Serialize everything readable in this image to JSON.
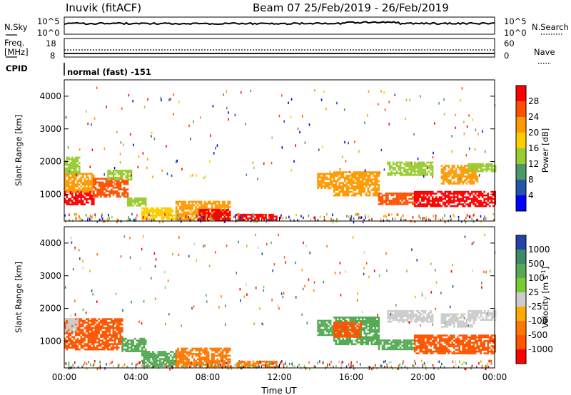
{
  "header": {
    "title_left": "Inuvik (fitACF)",
    "title_right": "Beam 07  25/Feb/2019 - 26/Feb/2019",
    "mode_line": "normal (fast) -151"
  },
  "nsky_panel": {
    "left_label": "N.Sky",
    "right_label": "N.Search",
    "ticks_left": [
      "10^5",
      "10^0"
    ],
    "ticks_right": [
      "10^5",
      "10^0"
    ]
  },
  "freq_panel": {
    "left_label_1": "Freq.",
    "left_label_2": "[MHz]",
    "right_label": "Nave",
    "ticks_left": [
      "18",
      "8"
    ],
    "ticks_right": [
      "60",
      "0"
    ]
  },
  "cpid_label": "CPID",
  "chart_data": [
    {
      "type": "heatmap",
      "name": "power",
      "ylabel": "Slant Range [km]",
      "xlabel": "",
      "x_ticks": [
        "00:00",
        "04:00",
        "08:00",
        "12:00",
        "16:00",
        "20:00",
        "00:00"
      ],
      "y_ticks": [
        "1000",
        "2000",
        "3000",
        "4000"
      ],
      "xlim": [
        0,
        24
      ],
      "ylim": [
        180,
        4500
      ],
      "colorbar": {
        "label": "Power [dB]",
        "ticks": [
          "28",
          "24",
          "20",
          "16",
          "12",
          "8",
          "4"
        ],
        "colors": [
          "#ff0000",
          "#ff5000",
          "#ff9900",
          "#ffcc00",
          "#99cc33",
          "#4d9966",
          "#2255aa",
          "#0000ff"
        ]
      },
      "regions": [
        {
          "t0": 0.0,
          "t1": 1.6,
          "r0": 700,
          "r1": 1100,
          "level": 28
        },
        {
          "t0": 0.0,
          "t1": 1.6,
          "r0": 1100,
          "r1": 1650,
          "level": 20
        },
        {
          "t0": 0.0,
          "t1": 0.8,
          "r0": 1650,
          "r1": 2150,
          "level": 12
        },
        {
          "t0": 1.6,
          "t1": 3.5,
          "r0": 900,
          "r1": 1500,
          "level": 24
        },
        {
          "t0": 2.4,
          "t1": 3.7,
          "r0": 1450,
          "r1": 1750,
          "level": 12
        },
        {
          "t0": 3.5,
          "t1": 4.5,
          "r0": 650,
          "r1": 900,
          "level": 12
        },
        {
          "t0": 4.3,
          "t1": 6.2,
          "r0": 250,
          "r1": 600,
          "level": 16
        },
        {
          "t0": 6.2,
          "t1": 9.2,
          "r0": 250,
          "r1": 800,
          "level": 20
        },
        {
          "t0": 7.5,
          "t1": 9.2,
          "r0": 200,
          "r1": 550,
          "level": 28
        },
        {
          "t0": 9.6,
          "t1": 11.8,
          "r0": 200,
          "r1": 400,
          "level": 28
        },
        {
          "t0": 14.1,
          "t1": 14.9,
          "r0": 1200,
          "r1": 1650,
          "level": 20
        },
        {
          "t0": 15.0,
          "t1": 17.5,
          "r0": 950,
          "r1": 1700,
          "level": 20
        },
        {
          "t0": 17.5,
          "t1": 19.5,
          "r0": 700,
          "r1": 1050,
          "level": 24
        },
        {
          "t0": 19.5,
          "t1": 24.0,
          "r0": 650,
          "r1": 1100,
          "level": 28
        },
        {
          "t0": 21.0,
          "t1": 23.0,
          "r0": 1300,
          "r1": 1900,
          "level": 20
        },
        {
          "t0": 18.0,
          "t1": 20.5,
          "r0": 1600,
          "r1": 2000,
          "level": 12
        },
        {
          "t0": 22.5,
          "t1": 24.0,
          "r0": 1700,
          "r1": 1950,
          "level": 12
        }
      ]
    },
    {
      "type": "heatmap",
      "name": "velocity",
      "ylabel": "Slant Range [km]",
      "xlabel": "Time UT",
      "x_ticks": [
        "00:00",
        "04:00",
        "08:00",
        "12:00",
        "16:00",
        "20:00",
        "00:00"
      ],
      "y_ticks": [
        "1000",
        "2000",
        "3000",
        "4000"
      ],
      "xlim": [
        0,
        24
      ],
      "ylim": [
        180,
        4500
      ],
      "colorbar": {
        "label": "Velocity [m s",
        "label_exponent": "-1",
        "label_close": "]",
        "ticks": [
          "1000",
          "500",
          "100",
          "25",
          "-25",
          "-100",
          "-500",
          "-1000"
        ],
        "colors": [
          "#2244aa",
          "#3d8a66",
          "#55aa55",
          "#77cc33",
          "#cccccc",
          "#ffaa00",
          "#ff7700",
          "#ff5500",
          "#ff0000"
        ]
      },
      "regions": [
        {
          "t0": 0.0,
          "t1": 3.2,
          "r0": 750,
          "r1": 1700,
          "level": -500
        },
        {
          "t0": 0.0,
          "t1": 0.7,
          "r0": 1300,
          "r1": 1700,
          "level": 0
        },
        {
          "t0": 3.2,
          "t1": 4.5,
          "r0": 700,
          "r1": 1100,
          "level": 100
        },
        {
          "t0": 4.3,
          "t1": 6.2,
          "r0": 250,
          "r1": 700,
          "level": 100
        },
        {
          "t0": 6.2,
          "t1": 9.2,
          "r0": 250,
          "r1": 800,
          "level": -100
        },
        {
          "t0": 9.6,
          "t1": 11.8,
          "r0": 200,
          "r1": 400,
          "level": -100
        },
        {
          "t0": 14.1,
          "t1": 14.9,
          "r0": 1200,
          "r1": 1650,
          "level": 100
        },
        {
          "t0": 15.0,
          "t1": 17.5,
          "r0": 900,
          "r1": 1750,
          "level": 100
        },
        {
          "t0": 15.0,
          "t1": 16.5,
          "r0": 1150,
          "r1": 1600,
          "level": -500
        },
        {
          "t0": 17.5,
          "t1": 19.5,
          "r0": 750,
          "r1": 1050,
          "level": 100
        },
        {
          "t0": 19.5,
          "t1": 24.0,
          "r0": 650,
          "r1": 1200,
          "level": -500
        },
        {
          "t0": 18.0,
          "t1": 20.5,
          "r0": 1600,
          "r1": 1950,
          "level": 0
        },
        {
          "t0": 21.0,
          "t1": 22.8,
          "r0": 1450,
          "r1": 1850,
          "level": 0
        },
        {
          "t0": 22.5,
          "t1": 24.0,
          "r0": 1650,
          "r1": 1950,
          "level": 0
        }
      ]
    }
  ]
}
